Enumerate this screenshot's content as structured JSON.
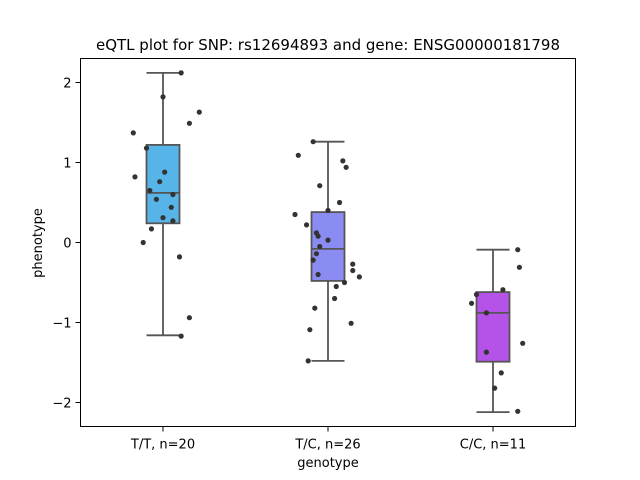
{
  "chart_data": {
    "type": "box",
    "title": "eQTL plot for SNP: rs12694893 and gene: ENSG00000181798",
    "xlabel": "genotype",
    "ylabel": "phenotype",
    "ylim": [
      -2.3,
      2.3
    ],
    "yticks": [
      {
        "value": 2,
        "label": "2"
      },
      {
        "value": 1,
        "label": "1"
      },
      {
        "value": 0,
        "label": "0"
      },
      {
        "value": -1,
        "label": "−1"
      },
      {
        "value": -2,
        "label": "−2"
      }
    ],
    "grid": false,
    "groups": [
      {
        "label": "T/T, n=20",
        "color": "#56b4e9",
        "whisker_low": -1.16,
        "q1": 0.24,
        "median": 0.62,
        "q3": 1.22,
        "whisker_high": 2.12,
        "points": [
          {
            "dx": 0.11,
            "y": 2.12
          },
          {
            "dx": 0.0,
            "y": 1.82
          },
          {
            "dx": 0.22,
            "y": 1.63
          },
          {
            "dx": 0.16,
            "y": 1.49
          },
          {
            "dx": -0.18,
            "y": 1.37
          },
          {
            "dx": -0.1,
            "y": 1.18
          },
          {
            "dx": 0.01,
            "y": 0.88
          },
          {
            "dx": -0.17,
            "y": 0.82
          },
          {
            "dx": -0.02,
            "y": 0.76
          },
          {
            "dx": -0.08,
            "y": 0.65
          },
          {
            "dx": 0.06,
            "y": 0.6
          },
          {
            "dx": -0.04,
            "y": 0.54
          },
          {
            "dx": 0.05,
            "y": 0.44
          },
          {
            "dx": 0.0,
            "y": 0.31
          },
          {
            "dx": 0.06,
            "y": 0.27
          },
          {
            "dx": -0.07,
            "y": 0.17
          },
          {
            "dx": -0.12,
            "y": 0.0
          },
          {
            "dx": 0.1,
            "y": -0.18
          },
          {
            "dx": 0.16,
            "y": -0.94
          },
          {
            "dx": 0.11,
            "y": -1.17
          }
        ]
      },
      {
        "label": "T/C, n=26",
        "color": "#8b8cf2",
        "whisker_low": -1.48,
        "q1": -0.48,
        "median": -0.08,
        "q3": 0.38,
        "whisker_high": 1.26,
        "points": [
          {
            "dx": -0.09,
            "y": 1.26
          },
          {
            "dx": -0.18,
            "y": 1.09
          },
          {
            "dx": 0.09,
            "y": 1.02
          },
          {
            "dx": 0.11,
            "y": 0.94
          },
          {
            "dx": -0.05,
            "y": 0.71
          },
          {
            "dx": 0.07,
            "y": 0.5
          },
          {
            "dx": 0.0,
            "y": 0.4
          },
          {
            "dx": -0.2,
            "y": 0.35
          },
          {
            "dx": -0.13,
            "y": 0.22
          },
          {
            "dx": -0.07,
            "y": 0.12
          },
          {
            "dx": -0.06,
            "y": 0.08
          },
          {
            "dx": 0.0,
            "y": 0.03
          },
          {
            "dx": -0.05,
            "y": -0.05
          },
          {
            "dx": -0.07,
            "y": -0.14
          },
          {
            "dx": -0.09,
            "y": -0.22
          },
          {
            "dx": 0.15,
            "y": -0.27
          },
          {
            "dx": 0.15,
            "y": -0.35
          },
          {
            "dx": -0.06,
            "y": -0.4
          },
          {
            "dx": 0.19,
            "y": -0.43
          },
          {
            "dx": 0.1,
            "y": -0.5
          },
          {
            "dx": 0.05,
            "y": -0.55
          },
          {
            "dx": 0.04,
            "y": -0.7
          },
          {
            "dx": -0.08,
            "y": -0.82
          },
          {
            "dx": 0.14,
            "y": -1.01
          },
          {
            "dx": -0.11,
            "y": -1.09
          },
          {
            "dx": -0.12,
            "y": -1.48
          }
        ]
      },
      {
        "label": "C/C, n=11",
        "color": "#b553e8",
        "whisker_low": -2.12,
        "q1": -1.49,
        "median": -0.88,
        "q3": -0.62,
        "whisker_high": -0.09,
        "points": [
          {
            "dx": 0.15,
            "y": -0.09
          },
          {
            "dx": 0.16,
            "y": -0.31
          },
          {
            "dx": 0.06,
            "y": -0.59
          },
          {
            "dx": -0.1,
            "y": -0.65
          },
          {
            "dx": -0.13,
            "y": -0.76
          },
          {
            "dx": -0.04,
            "y": -0.88
          },
          {
            "dx": 0.18,
            "y": -1.26
          },
          {
            "dx": -0.04,
            "y": -1.37
          },
          {
            "dx": 0.05,
            "y": -1.63
          },
          {
            "dx": 0.01,
            "y": -1.82
          },
          {
            "dx": 0.15,
            "y": -2.11
          }
        ]
      }
    ]
  }
}
